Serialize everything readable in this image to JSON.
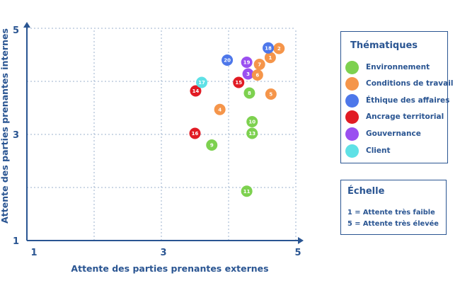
{
  "colors": {
    "environnement": "#7dd14f",
    "conditions": "#f5954a",
    "ethique": "#4d77ea",
    "ancrage": "#e11b24",
    "gouvernance": "#9a4ff0",
    "client": "#5fe1e6",
    "axis": "#2a5592"
  },
  "legend": {
    "title": "Thématiques",
    "items": [
      {
        "key": "environnement",
        "label": "Environnement"
      },
      {
        "key": "conditions",
        "label": "Conditions de travail"
      },
      {
        "key": "ethique",
        "label": "Éthique des affaires"
      },
      {
        "key": "ancrage",
        "label": "Ancrage territorial"
      },
      {
        "key": "gouvernance",
        "label": "Gouvernance"
      },
      {
        "key": "client",
        "label": "Client"
      }
    ]
  },
  "scale": {
    "title": "Échelle",
    "lines": [
      "1 = Attente très faible",
      "5 = Attente très élevée"
    ]
  },
  "chart_data": {
    "type": "scatter",
    "title": "",
    "xlabel": "Attente des parties prenantes externes",
    "ylabel": "Attente des parties prenantes internes",
    "xlim": [
      1,
      5
    ],
    "ylim": [
      1,
      5
    ],
    "xticks": [
      "1",
      "3",
      "5"
    ],
    "yticks": [
      "1",
      "3",
      "5"
    ],
    "grid": true,
    "legend_position": "right",
    "points": [
      {
        "label": "1",
        "x": 4.62,
        "y": 4.45,
        "theme": "conditions"
      },
      {
        "label": "2",
        "x": 4.75,
        "y": 4.62,
        "theme": "conditions"
      },
      {
        "label": "3",
        "x": 4.29,
        "y": 4.14,
        "theme": "gouvernance"
      },
      {
        "label": "4",
        "x": 3.87,
        "y": 3.47,
        "theme": "conditions"
      },
      {
        "label": "5",
        "x": 4.63,
        "y": 3.76,
        "theme": "conditions"
      },
      {
        "label": "6",
        "x": 4.43,
        "y": 4.12,
        "theme": "conditions"
      },
      {
        "label": "7",
        "x": 4.46,
        "y": 4.32,
        "theme": "conditions"
      },
      {
        "label": "8",
        "x": 4.31,
        "y": 3.78,
        "theme": "environnement"
      },
      {
        "label": "9",
        "x": 3.75,
        "y": 2.8,
        "theme": "environnement"
      },
      {
        "label": "10",
        "x": 4.35,
        "y": 3.24,
        "theme": "environnement"
      },
      {
        "label": "11",
        "x": 4.27,
        "y": 1.93,
        "theme": "environnement"
      },
      {
        "label": "13",
        "x": 4.35,
        "y": 3.02,
        "theme": "environnement"
      },
      {
        "label": "14",
        "x": 3.51,
        "y": 3.82,
        "theme": "ancrage"
      },
      {
        "label": "15",
        "x": 4.15,
        "y": 3.98,
        "theme": "ancrage"
      },
      {
        "label": "16",
        "x": 3.5,
        "y": 3.02,
        "theme": "ancrage"
      },
      {
        "label": "17",
        "x": 3.6,
        "y": 3.98,
        "theme": "client"
      },
      {
        "label": "18",
        "x": 4.59,
        "y": 4.63,
        "theme": "ethique"
      },
      {
        "label": "19",
        "x": 4.27,
        "y": 4.36,
        "theme": "gouvernance"
      },
      {
        "label": "20",
        "x": 3.98,
        "y": 4.4,
        "theme": "ethique"
      }
    ]
  }
}
